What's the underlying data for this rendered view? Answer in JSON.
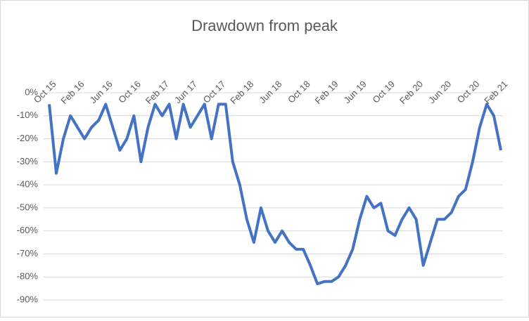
{
  "chart_data": {
    "type": "line",
    "title": "Drawdown from peak",
    "categories": [
      "Oct 15",
      null,
      null,
      null,
      "Feb 16",
      null,
      null,
      null,
      "Jun 16",
      null,
      null,
      null,
      "Oct 16",
      null,
      null,
      null,
      "Feb 17",
      null,
      null,
      null,
      "Jun 17",
      null,
      null,
      null,
      "Oct 17",
      null,
      null,
      null,
      "Feb 18",
      null,
      null,
      null,
      "Jun 18",
      null,
      null,
      null,
      "Oct 18",
      null,
      null,
      null,
      "Feb 19",
      null,
      null,
      null,
      "Jun 19",
      null,
      null,
      null,
      "Oct 19",
      null,
      null,
      null,
      "Feb 20",
      null,
      null,
      null,
      "Jun 20",
      null,
      null,
      null,
      "Oct 20",
      null,
      null,
      null,
      "Feb 21"
    ],
    "series": [
      {
        "name": "Drawdown",
        "color": "#4472c4",
        "values": [
          -5,
          -35,
          -20,
          -10,
          -15,
          -20,
          -15,
          -12,
          -5,
          -15,
          -25,
          -20,
          -10,
          -30,
          -15,
          -5,
          -10,
          -5,
          -20,
          -5,
          -15,
          -10,
          -5,
          -20,
          -5,
          -5,
          -30,
          -40,
          -55,
          -65,
          -50,
          -60,
          -65,
          -60,
          -65,
          -68,
          -68,
          -75,
          -83,
          -82,
          -82,
          -80,
          -75,
          -68,
          -55,
          -45,
          -50,
          -48,
          -60,
          -62,
          -55,
          -50,
          -55,
          -75,
          -65,
          -55,
          -55,
          -52,
          -45,
          -42,
          -30,
          -15,
          -5,
          -10,
          -25
        ]
      }
    ],
    "ylim": [
      -90,
      0
    ],
    "yticks": [
      {
        "value": 0,
        "label": "0%"
      },
      {
        "value": -10,
        "label": "-10%"
      },
      {
        "value": -20,
        "label": "-20%"
      },
      {
        "value": -30,
        "label": "-30%"
      },
      {
        "value": -40,
        "label": "-40%"
      },
      {
        "value": -50,
        "label": "-50%"
      },
      {
        "value": -60,
        "label": "-60%"
      },
      {
        "value": -70,
        "label": "-70%"
      },
      {
        "value": -80,
        "label": "-80%"
      },
      {
        "value": -90,
        "label": "-90%"
      }
    ],
    "grid": true
  }
}
